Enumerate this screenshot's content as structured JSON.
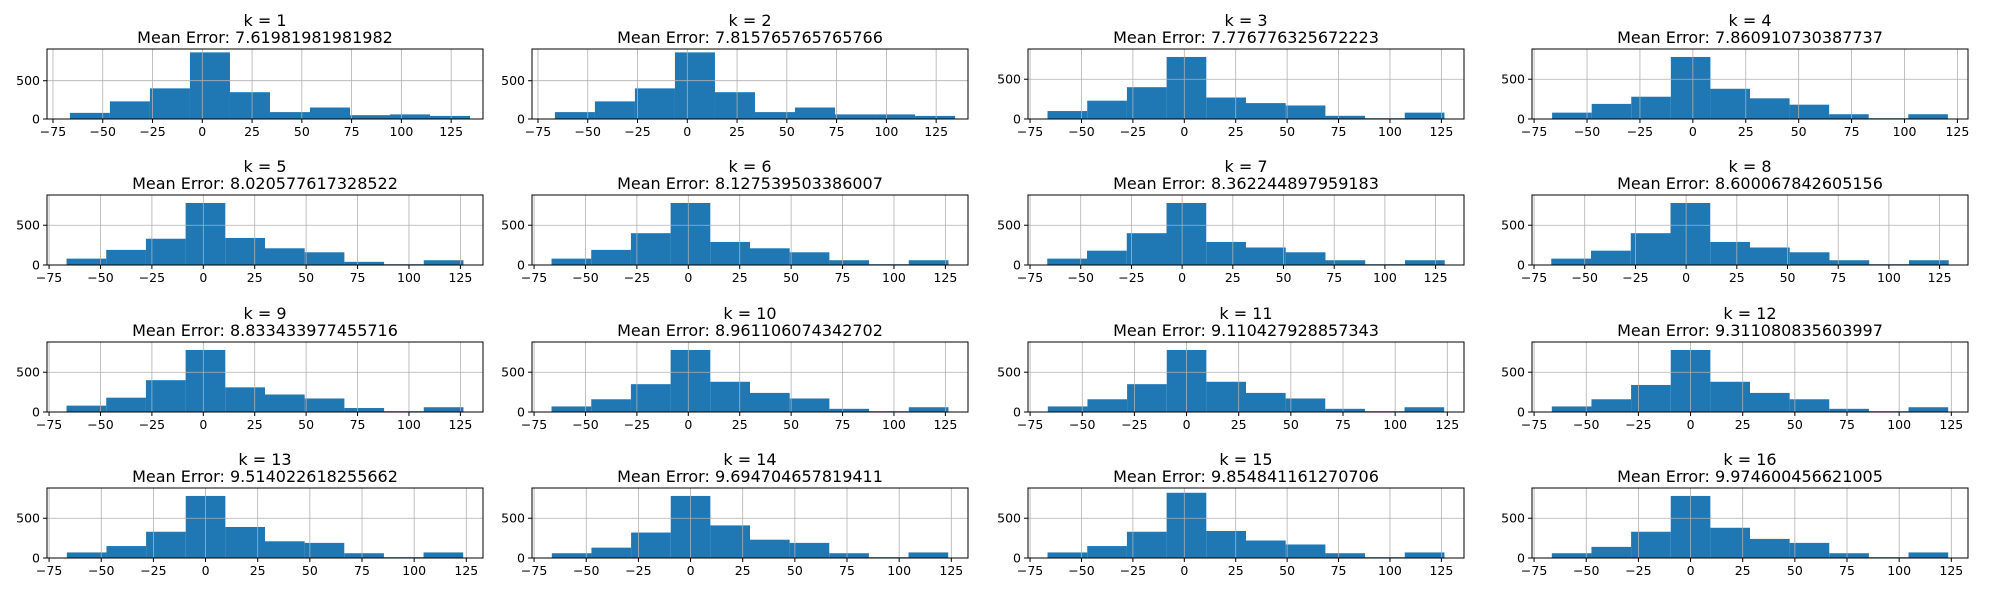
{
  "colors": {
    "bar": "#1f77b4",
    "grid": "#b0b0b0"
  },
  "chart_data": [
    {
      "type": "bar",
      "title": "k = 1",
      "subtitle": "Mean Error: 7.61981981981982",
      "bin_edges": [
        -66.5,
        -46.4,
        -26.3,
        -6.2,
        13.9,
        34,
        54.1,
        74.2,
        94.3,
        114.4,
        134.5
      ],
      "values": [
        80,
        230,
        400,
        870,
        350,
        90,
        150,
        50,
        60,
        40
      ],
      "xticks": [
        -75,
        -50,
        -25,
        0,
        25,
        50,
        75,
        100,
        125
      ],
      "yticks": [
        0,
        500
      ],
      "xlim": [
        -78,
        141
      ],
      "ylim": [
        0,
        914
      ],
      "grid": true
    },
    {
      "type": "bar",
      "title": "k = 2",
      "subtitle": "Mean Error: 7.815765765765766",
      "bin_edges": [
        -66.5,
        -46.4,
        -26.3,
        -6.2,
        13.9,
        34,
        54.1,
        74.2,
        94.3,
        114.4,
        134.5
      ],
      "values": [
        90,
        230,
        400,
        870,
        350,
        90,
        150,
        60,
        60,
        40
      ],
      "xticks": [
        -75,
        -50,
        -25,
        0,
        25,
        50,
        75,
        100,
        125
      ],
      "yticks": [
        0,
        500
      ],
      "xlim": [
        -78,
        141
      ],
      "ylim": [
        0,
        914
      ],
      "grid": true
    },
    {
      "type": "bar",
      "title": "k = 3",
      "subtitle": "Mean Error: 7.776776325672223",
      "bin_edges": [
        -66.5,
        -47.2,
        -27.9,
        -8.6,
        10.7,
        30,
        49.3,
        68.6,
        87.9,
        107.2,
        126.5
      ],
      "values": [
        100,
        230,
        400,
        780,
        270,
        200,
        170,
        40,
        10,
        80
      ],
      "xticks": [
        -75,
        -50,
        -25,
        0,
        25,
        50,
        75,
        100,
        125
      ],
      "yticks": [
        0,
        500
      ],
      "xlim": [
        -76,
        136
      ],
      "ylim": [
        0,
        880
      ],
      "grid": true
    },
    {
      "type": "bar",
      "title": "k = 4",
      "subtitle": "Mean Error: 7.860910730387737",
      "bin_edges": [
        -66.5,
        -47.8,
        -29.1,
        -10.4,
        8.3,
        27,
        45.7,
        64.4,
        83.1,
        101.8,
        120.5
      ],
      "values": [
        80,
        190,
        280,
        780,
        380,
        260,
        180,
        60,
        10,
        60
      ],
      "xticks": [
        -75,
        -50,
        -25,
        0,
        25,
        50,
        75,
        100,
        125
      ],
      "yticks": [
        0,
        500
      ],
      "xlim": [
        -76,
        130
      ],
      "ylim": [
        0,
        880
      ],
      "grid": true
    },
    {
      "type": "bar",
      "title": "k = 5",
      "subtitle": "Mean Error: 8.020577617328522",
      "bin_edges": [
        -66.5,
        -47.2,
        -27.9,
        -8.6,
        10.7,
        30,
        49.3,
        68.6,
        87.9,
        107.2,
        126.5
      ],
      "values": [
        80,
        190,
        330,
        780,
        340,
        210,
        160,
        40,
        10,
        60
      ],
      "xticks": [
        -75,
        -50,
        -25,
        0,
        25,
        50,
        75,
        100,
        125
      ],
      "yticks": [
        0,
        500
      ],
      "xlim": [
        -76,
        136
      ],
      "ylim": [
        0,
        880
      ],
      "grid": true
    },
    {
      "type": "bar",
      "title": "k = 6",
      "subtitle": "Mean Error: 8.127539503386007",
      "bin_edges": [
        -66.5,
        -47.2,
        -27.9,
        -8.6,
        10.7,
        30,
        49.3,
        68.6,
        87.9,
        107.2,
        126.5
      ],
      "values": [
        80,
        190,
        400,
        780,
        290,
        210,
        160,
        60,
        10,
        60
      ],
      "xticks": [
        -75,
        -50,
        -25,
        0,
        25,
        50,
        75,
        100,
        125
      ],
      "yticks": [
        0,
        500
      ],
      "xlim": [
        -76,
        136
      ],
      "ylim": [
        0,
        880
      ],
      "grid": true
    },
    {
      "type": "bar",
      "title": "k = 7",
      "subtitle": "Mean Error: 8.362244897959183",
      "bin_edges": [
        -66.5,
        -46.9,
        -27.3,
        -7.7,
        11.9,
        31.5,
        51.1,
        70.7,
        90.3,
        109.9,
        129.5
      ],
      "values": [
        80,
        180,
        400,
        780,
        290,
        220,
        160,
        60,
        10,
        60
      ],
      "xticks": [
        -75,
        -50,
        -25,
        0,
        25,
        50,
        75,
        100,
        125
      ],
      "yticks": [
        0,
        500
      ],
      "xlim": [
        -76,
        139
      ],
      "ylim": [
        0,
        880
      ],
      "grid": true
    },
    {
      "type": "bar",
      "title": "k = 8",
      "subtitle": "Mean Error: 8.600067842605156",
      "bin_edges": [
        -66.5,
        -46.9,
        -27.3,
        -7.7,
        11.9,
        31.5,
        51.1,
        70.7,
        90.3,
        109.9,
        129.5
      ],
      "values": [
        80,
        180,
        400,
        780,
        290,
        220,
        160,
        60,
        10,
        60
      ],
      "xticks": [
        -75,
        -50,
        -25,
        0,
        25,
        50,
        75,
        100,
        125
      ],
      "yticks": [
        0,
        500
      ],
      "xlim": [
        -76,
        139
      ],
      "ylim": [
        0,
        880
      ],
      "grid": true
    },
    {
      "type": "bar",
      "title": "k = 9",
      "subtitle": "Mean Error: 8.833433977455716",
      "bin_edges": [
        -66.5,
        -47.2,
        -27.9,
        -8.6,
        10.7,
        30,
        49.3,
        68.6,
        87.9,
        107.2,
        126.5
      ],
      "values": [
        80,
        180,
        400,
        780,
        310,
        220,
        170,
        50,
        10,
        60
      ],
      "xticks": [
        -75,
        -50,
        -25,
        0,
        25,
        50,
        75,
        100,
        125
      ],
      "yticks": [
        0,
        500
      ],
      "xlim": [
        -76,
        136
      ],
      "ylim": [
        0,
        880
      ],
      "grid": true
    },
    {
      "type": "bar",
      "title": "k = 10",
      "subtitle": "Mean Error: 8.961106074342702",
      "bin_edges": [
        -66.5,
        -47.2,
        -27.9,
        -8.6,
        10.7,
        30,
        49.3,
        68.6,
        87.9,
        107.2,
        126.5
      ],
      "values": [
        70,
        160,
        350,
        780,
        380,
        240,
        170,
        40,
        10,
        60
      ],
      "xticks": [
        -75,
        -50,
        -25,
        0,
        25,
        50,
        75,
        100,
        125
      ],
      "yticks": [
        0,
        500
      ],
      "xlim": [
        -76,
        136
      ],
      "ylim": [
        0,
        880
      ],
      "grid": true
    },
    {
      "type": "bar",
      "title": "k = 11",
      "subtitle": "Mean Error: 9.110427928857343",
      "bin_edges": [
        -66.5,
        -47.5,
        -28.5,
        -9.5,
        9.5,
        28.5,
        47.5,
        66.5,
        85.5,
        104.5,
        123.5
      ],
      "values": [
        70,
        160,
        350,
        780,
        380,
        240,
        170,
        40,
        10,
        60
      ],
      "xticks": [
        -75,
        -50,
        -25,
        0,
        25,
        50,
        75,
        100,
        125
      ],
      "yticks": [
        0,
        500
      ],
      "xlim": [
        -76,
        133
      ],
      "ylim": [
        0,
        880
      ],
      "grid": true
    },
    {
      "type": "bar",
      "title": "k = 12",
      "subtitle": "Mean Error: 9.311080835603997",
      "bin_edges": [
        -66.5,
        -47.5,
        -28.5,
        -9.5,
        9.5,
        28.5,
        47.5,
        66.5,
        85.5,
        104.5,
        123.5
      ],
      "values": [
        70,
        160,
        340,
        780,
        380,
        240,
        160,
        40,
        10,
        60
      ],
      "xticks": [
        -75,
        -50,
        -25,
        0,
        25,
        50,
        75,
        100,
        125
      ],
      "yticks": [
        0,
        500
      ],
      "xlim": [
        -76,
        133
      ],
      "ylim": [
        0,
        880
      ],
      "grid": true
    },
    {
      "type": "bar",
      "title": "k = 13",
      "subtitle": "Mean Error: 9.514022618255662",
      "bin_edges": [
        -66.5,
        -47.5,
        -28.5,
        -9.5,
        9.5,
        28.5,
        47.5,
        66.5,
        85.5,
        104.5,
        123.5
      ],
      "values": [
        70,
        150,
        330,
        780,
        390,
        210,
        190,
        60,
        10,
        70
      ],
      "xticks": [
        -75,
        -50,
        -25,
        0,
        25,
        50,
        75,
        100,
        125
      ],
      "yticks": [
        0,
        500
      ],
      "xlim": [
        -76,
        133
      ],
      "ylim": [
        0,
        880
      ],
      "grid": true
    },
    {
      "type": "bar",
      "title": "k = 14",
      "subtitle": "Mean Error: 9.694704657819411",
      "bin_edges": [
        -66.5,
        -47.5,
        -28.5,
        -9.5,
        9.5,
        28.5,
        47.5,
        66.5,
        85.5,
        104.5,
        123.5
      ],
      "values": [
        60,
        130,
        320,
        780,
        410,
        230,
        190,
        60,
        10,
        70
      ],
      "xticks": [
        -75,
        -50,
        -25,
        0,
        25,
        50,
        75,
        100,
        125
      ],
      "yticks": [
        0,
        500
      ],
      "xlim": [
        -76,
        133
      ],
      "ylim": [
        0,
        880
      ],
      "grid": true
    },
    {
      "type": "bar",
      "title": "k = 15",
      "subtitle": "Mean Error: 9.854841161270706",
      "bin_edges": [
        -66.5,
        -47.2,
        -27.9,
        -8.6,
        10.7,
        30,
        49.3,
        68.6,
        87.9,
        107.2,
        126.5
      ],
      "values": [
        70,
        150,
        330,
        820,
        340,
        220,
        170,
        60,
        10,
        70
      ],
      "xticks": [
        -75,
        -50,
        -25,
        0,
        25,
        50,
        75,
        100,
        125
      ],
      "yticks": [
        0,
        500
      ],
      "xlim": [
        -76,
        136
      ],
      "ylim": [
        0,
        880
      ],
      "grid": true
    },
    {
      "type": "bar",
      "title": "k = 16",
      "subtitle": "Mean Error: 9.974600456621005",
      "bin_edges": [
        -66.5,
        -47.5,
        -28.5,
        -9.5,
        9.5,
        28.5,
        47.5,
        66.5,
        85.5,
        104.5,
        123.5
      ],
      "values": [
        60,
        140,
        330,
        780,
        380,
        240,
        190,
        60,
        10,
        70
      ],
      "xticks": [
        -75,
        -50,
        -25,
        0,
        25,
        50,
        75,
        100,
        125
      ],
      "yticks": [
        0,
        500
      ],
      "xlim": [
        -76,
        133
      ],
      "ylim": [
        0,
        880
      ],
      "grid": true
    }
  ]
}
